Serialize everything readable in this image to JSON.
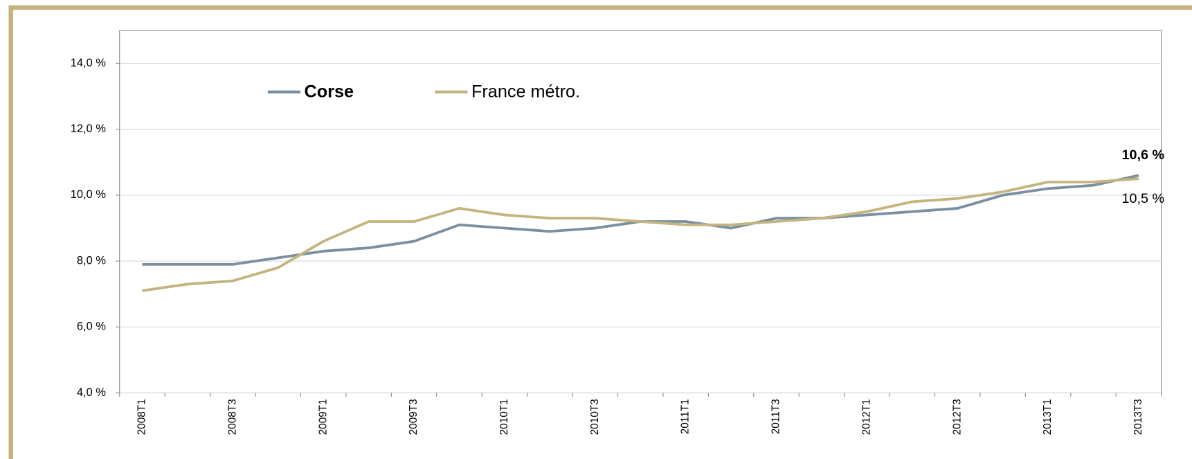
{
  "chart_data": {
    "type": "line",
    "categories": [
      "2008T1",
      null,
      "2008T3",
      null,
      "2009T1",
      null,
      "2009T3",
      null,
      "2010T1",
      null,
      "2010T3",
      null,
      "2011T1",
      null,
      "2011T3",
      null,
      "2012T1",
      null,
      "2012T3",
      null,
      "2013T1",
      null,
      "2013T3"
    ],
    "series": [
      {
        "name": "Corse",
        "color": "#7a8fa0",
        "values": [
          7.9,
          7.9,
          7.9,
          8.1,
          8.3,
          8.4,
          8.6,
          9.1,
          9.0,
          8.9,
          9.0,
          9.2,
          9.2,
          9.0,
          9.3,
          9.3,
          9.4,
          9.5,
          9.6,
          10.0,
          10.2,
          10.3,
          10.6
        ],
        "value_labels": [
          null,
          null,
          null,
          null,
          null,
          null,
          null,
          null,
          null,
          null,
          null,
          null,
          null,
          null,
          null,
          null,
          null,
          null,
          null,
          null,
          null,
          null,
          "10,6 %"
        ]
      },
      {
        "name": "France métro.",
        "color": "#c4b47f",
        "values": [
          7.1,
          7.3,
          7.4,
          7.8,
          8.6,
          9.2,
          9.2,
          9.6,
          9.4,
          9.3,
          9.3,
          9.2,
          9.1,
          9.1,
          9.2,
          9.3,
          9.5,
          9.8,
          9.9,
          10.1,
          10.4,
          10.4,
          10.5
        ],
        "value_labels": [
          null,
          null,
          null,
          null,
          null,
          null,
          null,
          null,
          null,
          null,
          null,
          null,
          null,
          null,
          null,
          null,
          null,
          null,
          null,
          null,
          null,
          null,
          "10,5 %"
        ]
      }
    ],
    "ylim": [
      4,
      15
    ],
    "yticks": [
      {
        "value": 4,
        "label": "4,0 %"
      },
      {
        "value": 6,
        "label": "6,0 %"
      },
      {
        "value": 8,
        "label": "8,0 %"
      },
      {
        "value": 10,
        "label": "10,0 %"
      },
      {
        "value": 12,
        "label": "12,0 %"
      },
      {
        "value": 14,
        "label": "14,0 %"
      }
    ],
    "grid": true
  }
}
